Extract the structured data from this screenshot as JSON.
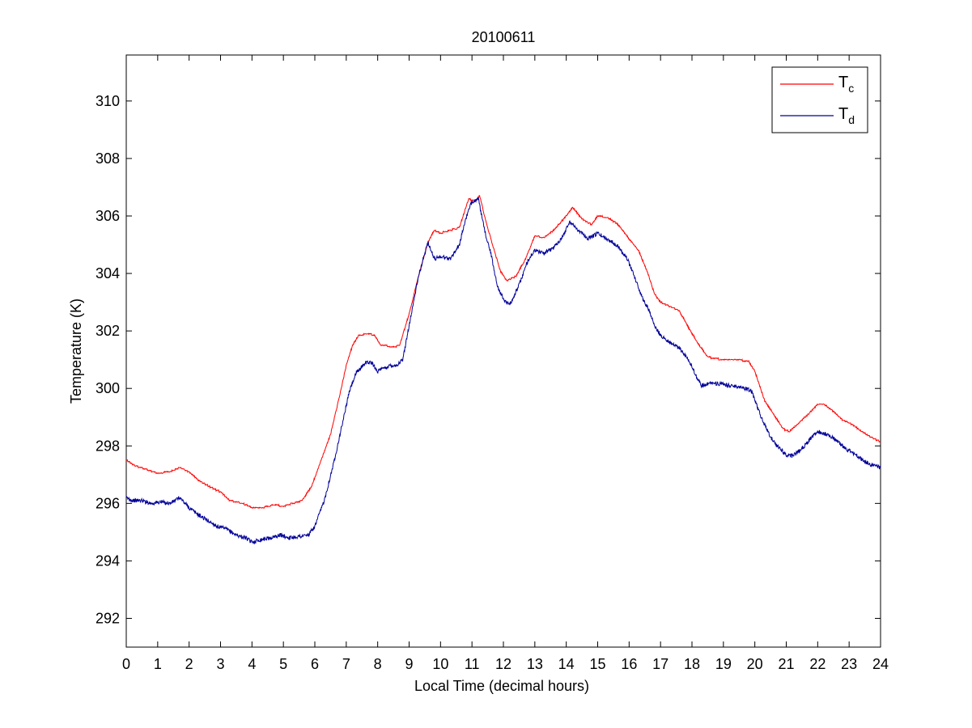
{
  "chart_data": {
    "type": "line",
    "title": "20100611",
    "xlabel": "Local Time (decimal hours)",
    "ylabel": "Temperature (K)",
    "xlim": [
      0,
      24
    ],
    "ylim": [
      291,
      311.6
    ],
    "xticks": [
      "0",
      "1",
      "2",
      "3",
      "4",
      "5",
      "6",
      "7",
      "8",
      "9",
      "10",
      "11",
      "12",
      "13",
      "14",
      "15",
      "16",
      "17",
      "18",
      "19",
      "20",
      "21",
      "22",
      "23",
      "24"
    ],
    "yticks": [
      "292",
      "294",
      "296",
      "298",
      "300",
      "302",
      "304",
      "306",
      "308",
      "310"
    ],
    "grid": false,
    "legend_position": "top-right",
    "series": [
      {
        "name": "T",
        "subscript": "c",
        "color": "#ff0000",
        "points": [
          [
            0,
            297.5
          ],
          [
            0.3,
            297.3
          ],
          [
            0.6,
            297.2
          ],
          [
            1.0,
            297.05
          ],
          [
            1.4,
            297.1
          ],
          [
            1.7,
            297.25
          ],
          [
            2.0,
            297.1
          ],
          [
            2.3,
            296.8
          ],
          [
            2.7,
            296.55
          ],
          [
            3.0,
            296.4
          ],
          [
            3.3,
            296.1
          ],
          [
            3.7,
            296.0
          ],
          [
            4.0,
            295.85
          ],
          [
            4.3,
            295.85
          ],
          [
            4.7,
            295.95
          ],
          [
            5.0,
            295.9
          ],
          [
            5.3,
            296.0
          ],
          [
            5.6,
            296.1
          ],
          [
            5.9,
            296.6
          ],
          [
            6.2,
            297.5
          ],
          [
            6.5,
            298.4
          ],
          [
            6.8,
            299.8
          ],
          [
            7.0,
            300.8
          ],
          [
            7.2,
            301.5
          ],
          [
            7.4,
            301.85
          ],
          [
            7.7,
            301.9
          ],
          [
            7.9,
            301.85
          ],
          [
            8.1,
            301.5
          ],
          [
            8.5,
            301.45
          ],
          [
            8.7,
            301.5
          ],
          [
            9.0,
            302.6
          ],
          [
            9.3,
            303.9
          ],
          [
            9.6,
            305.1
          ],
          [
            9.8,
            305.5
          ],
          [
            10.0,
            305.4
          ],
          [
            10.3,
            305.5
          ],
          [
            10.6,
            305.6
          ],
          [
            10.9,
            306.6
          ],
          [
            11.1,
            306.5
          ],
          [
            11.25,
            306.7
          ],
          [
            11.4,
            306.0
          ],
          [
            11.6,
            305.2
          ],
          [
            11.9,
            304.1
          ],
          [
            12.1,
            303.75
          ],
          [
            12.4,
            303.9
          ],
          [
            12.7,
            304.5
          ],
          [
            13.0,
            305.3
          ],
          [
            13.3,
            305.25
          ],
          [
            13.6,
            305.5
          ],
          [
            14.0,
            306.0
          ],
          [
            14.2,
            306.3
          ],
          [
            14.5,
            305.9
          ],
          [
            14.8,
            305.7
          ],
          [
            15.0,
            306.0
          ],
          [
            15.3,
            305.95
          ],
          [
            15.6,
            305.75
          ],
          [
            15.8,
            305.5
          ],
          [
            16.0,
            305.2
          ],
          [
            16.3,
            304.8
          ],
          [
            16.6,
            304.0
          ],
          [
            16.8,
            303.3
          ],
          [
            17.0,
            303.0
          ],
          [
            17.3,
            302.85
          ],
          [
            17.6,
            302.7
          ],
          [
            17.9,
            302.1
          ],
          [
            18.2,
            301.55
          ],
          [
            18.5,
            301.1
          ],
          [
            18.7,
            301.05
          ],
          [
            19.0,
            301.0
          ],
          [
            19.4,
            301.0
          ],
          [
            19.8,
            300.95
          ],
          [
            20.0,
            300.6
          ],
          [
            20.3,
            299.6
          ],
          [
            20.6,
            299.1
          ],
          [
            20.9,
            298.6
          ],
          [
            21.1,
            298.5
          ],
          [
            21.4,
            298.8
          ],
          [
            21.7,
            299.1
          ],
          [
            22.0,
            299.45
          ],
          [
            22.2,
            299.45
          ],
          [
            22.5,
            299.2
          ],
          [
            22.8,
            298.9
          ],
          [
            23.1,
            298.75
          ],
          [
            23.4,
            298.5
          ],
          [
            23.7,
            298.3
          ],
          [
            24.0,
            298.15
          ]
        ]
      },
      {
        "name": "T",
        "subscript": "d",
        "color": "#000099",
        "points": [
          [
            0,
            296.2
          ],
          [
            0.2,
            296.1
          ],
          [
            0.5,
            296.1
          ],
          [
            0.8,
            296.0
          ],
          [
            1.1,
            296.05
          ],
          [
            1.4,
            296.0
          ],
          [
            1.7,
            296.2
          ],
          [
            2.0,
            295.85
          ],
          [
            2.3,
            295.6
          ],
          [
            2.6,
            295.4
          ],
          [
            2.9,
            295.2
          ],
          [
            3.2,
            295.1
          ],
          [
            3.5,
            294.9
          ],
          [
            3.8,
            294.8
          ],
          [
            4.0,
            294.65
          ],
          [
            4.3,
            294.75
          ],
          [
            4.6,
            294.8
          ],
          [
            4.9,
            294.9
          ],
          [
            5.2,
            294.8
          ],
          [
            5.5,
            294.85
          ],
          [
            5.8,
            294.9
          ],
          [
            6.0,
            295.2
          ],
          [
            6.3,
            296.1
          ],
          [
            6.6,
            297.4
          ],
          [
            6.9,
            298.9
          ],
          [
            7.1,
            299.9
          ],
          [
            7.3,
            300.5
          ],
          [
            7.6,
            300.9
          ],
          [
            7.8,
            300.9
          ],
          [
            8.0,
            300.6
          ],
          [
            8.2,
            300.7
          ],
          [
            8.4,
            300.8
          ],
          [
            8.6,
            300.8
          ],
          [
            8.8,
            301.0
          ],
          [
            9.0,
            302.2
          ],
          [
            9.3,
            303.9
          ],
          [
            9.6,
            305.1
          ],
          [
            9.8,
            304.5
          ],
          [
            10.0,
            304.6
          ],
          [
            10.3,
            304.5
          ],
          [
            10.6,
            305.0
          ],
          [
            10.8,
            305.9
          ],
          [
            11.0,
            306.5
          ],
          [
            11.2,
            306.6
          ],
          [
            11.4,
            305.5
          ],
          [
            11.6,
            304.7
          ],
          [
            11.8,
            303.6
          ],
          [
            12.0,
            303.1
          ],
          [
            12.2,
            302.9
          ],
          [
            12.5,
            303.6
          ],
          [
            12.8,
            304.5
          ],
          [
            13.0,
            304.8
          ],
          [
            13.3,
            304.7
          ],
          [
            13.6,
            304.9
          ],
          [
            13.9,
            305.3
          ],
          [
            14.1,
            305.8
          ],
          [
            14.4,
            305.5
          ],
          [
            14.7,
            305.2
          ],
          [
            15.0,
            305.4
          ],
          [
            15.3,
            305.2
          ],
          [
            15.6,
            305.0
          ],
          [
            15.9,
            304.6
          ],
          [
            16.1,
            304.1
          ],
          [
            16.4,
            303.2
          ],
          [
            16.6,
            302.8
          ],
          [
            16.8,
            302.2
          ],
          [
            17.0,
            301.85
          ],
          [
            17.3,
            301.6
          ],
          [
            17.6,
            301.4
          ],
          [
            17.9,
            301.0
          ],
          [
            18.1,
            300.5
          ],
          [
            18.3,
            300.1
          ],
          [
            18.6,
            300.2
          ],
          [
            18.9,
            300.15
          ],
          [
            19.2,
            300.1
          ],
          [
            19.6,
            300.05
          ],
          [
            19.9,
            299.9
          ],
          [
            20.2,
            299.0
          ],
          [
            20.5,
            298.3
          ],
          [
            20.8,
            297.9
          ],
          [
            21.0,
            297.7
          ],
          [
            21.2,
            297.65
          ],
          [
            21.5,
            297.9
          ],
          [
            21.8,
            298.3
          ],
          [
            22.0,
            298.5
          ],
          [
            22.3,
            298.4
          ],
          [
            22.6,
            298.2
          ],
          [
            22.9,
            297.9
          ],
          [
            23.2,
            297.7
          ],
          [
            23.5,
            297.45
          ],
          [
            23.8,
            297.3
          ],
          [
            24.0,
            297.25
          ]
        ]
      }
    ]
  }
}
